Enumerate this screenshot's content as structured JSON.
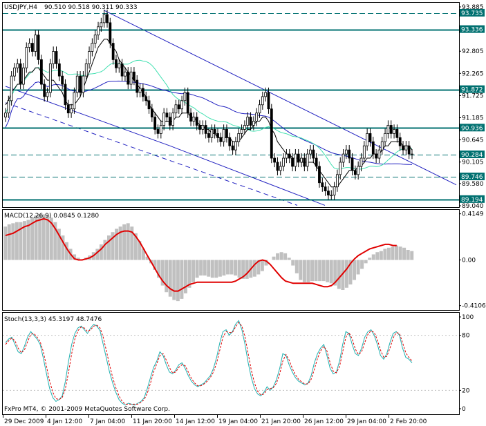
{
  "header": {
    "symbol": "USDJPY,H4",
    "ohlc": "90.510 90.518 90.311 90.333",
    "macd_label": "MACD(12,26,9) 0.0845 0.1280",
    "stoch_label": "Stoch(13,3,3) 45.3197 48.7476",
    "copyright": "FxPro MT4, © 2001-2009 MetaQuotes Software Corp."
  },
  "colors": {
    "candle": "#000000",
    "ma_fast": "#000000",
    "ma_mid": "#40e0b0",
    "ma_slow": "#2020c0",
    "channel": "#2020c0",
    "level_line": "#007070",
    "level_dash": "#007070",
    "macd_hist": "#c0c0c0",
    "macd_signal": "#e00000",
    "stoch_main": "#20b0b0",
    "stoch_signal": "#e00000",
    "grid": "#000000"
  },
  "chart_data": [
    {
      "type": "candlestick",
      "title": "USDJPY,H4",
      "ylim": [
        89.04,
        93.885
      ],
      "y_ticks": [
        "93.885",
        "93.335",
        "92.805",
        "92.265",
        "91.725",
        "91.185",
        "90.645",
        "90.105",
        "89.580",
        "89.040"
      ],
      "levels": [
        {
          "value": 93.735,
          "label": "93.735",
          "style": "dashed"
        },
        {
          "value": 93.336,
          "label": "93.336",
          "style": "solid"
        },
        {
          "value": 91.872,
          "label": "91.872",
          "style": "solid"
        },
        {
          "value": 90.936,
          "label": "90.936",
          "style": "solid"
        },
        {
          "value": 90.284,
          "label": "90.284",
          "style": "dashed"
        },
        {
          "value": 89.746,
          "label": "89.746",
          "style": "dashed"
        },
        {
          "value": 89.194,
          "label": "89.194",
          "style": "solid"
        }
      ],
      "x_ticks": [
        "29 Dec 2009",
        "4 Jan 12:00",
        "7 Jan 04:00",
        "11 Jan 20:00",
        "14 Jan 12:00",
        "19 Jan 04:00",
        "21 Jan 20:00",
        "26 Jan 12:00",
        "29 Jan 04:00",
        "2 Feb 20:00"
      ],
      "close": [
        91.3,
        91.6,
        92.2,
        92.4,
        92.5,
        92.0,
        92.4,
        92.9,
        93.0,
        92.8,
        93.2,
        92.6,
        92.0,
        91.7,
        91.8,
        92.5,
        92.8,
        92.5,
        92.2,
        92.0,
        91.5,
        91.3,
        91.4,
        91.8,
        92.2,
        91.8,
        92.2,
        92.5,
        92.8,
        93.0,
        93.2,
        93.4,
        93.5,
        93.7,
        93.5,
        93.0,
        92.6,
        92.4,
        92.5,
        92.2,
        92.3,
        92.0,
        92.3,
        92.1,
        91.8,
        91.9,
        91.7,
        91.6,
        91.4,
        91.2,
        90.9,
        90.8,
        91.0,
        91.3,
        91.2,
        91.0,
        91.3,
        91.5,
        91.4,
        91.6,
        91.8,
        91.3,
        91.1,
        91.2,
        91.0,
        90.9,
        91.0,
        90.8,
        90.7,
        90.9,
        90.8,
        90.7,
        90.6,
        90.9,
        90.7,
        90.5,
        90.4,
        90.6,
        90.8,
        90.9,
        91.0,
        91.2,
        91.0,
        91.1,
        91.3,
        91.5,
        91.7,
        91.8,
        91.4,
        90.2,
        90.1,
        89.9,
        90.0,
        90.2,
        90.3,
        90.2,
        90.0,
        90.3,
        90.1,
        90.2,
        90.0,
        90.3,
        90.4,
        90.2,
        90.0,
        89.6,
        89.5,
        89.4,
        89.3,
        89.3,
        89.5,
        89.8,
        90.1,
        90.3,
        90.4,
        90.2,
        89.9,
        89.8,
        90.0,
        90.2,
        90.5,
        90.8,
        90.6,
        90.3,
        90.2,
        90.4,
        90.6,
        90.8,
        91.0,
        90.8,
        90.9,
        90.7,
        90.5,
        90.4,
        90.5,
        90.3,
        90.3
      ],
      "ma_fast": [
        91.5,
        91.6,
        91.8,
        91.9,
        92.0,
        92.0,
        92.1,
        92.2,
        92.3,
        92.3,
        92.4,
        92.4,
        92.3,
        92.2,
        92.1,
        92.1,
        92.1,
        92.0,
        91.9,
        91.8,
        91.6,
        91.5,
        91.5,
        91.5,
        91.6,
        91.7,
        91.9,
        92.1,
        92.3,
        92.5,
        92.7,
        92.9,
        93.0,
        93.1,
        93.1,
        93.0,
        92.9,
        92.8,
        92.6,
        92.5,
        92.4,
        92.3,
        92.2,
        92.1,
        92.0,
        91.9,
        91.8,
        91.7,
        91.5,
        91.4,
        91.3,
        91.2,
        91.1,
        91.1,
        91.1,
        91.1,
        91.1,
        91.2,
        91.2,
        91.3,
        91.3,
        91.3,
        91.2,
        91.2,
        91.1,
        91.0,
        91.0,
        90.9,
        90.9,
        90.8,
        90.8,
        90.7,
        90.7,
        90.7,
        90.7,
        90.7,
        90.6,
        90.6,
        90.6,
        90.7,
        90.8,
        90.9,
        90.9,
        91.0,
        91.1,
        91.1,
        91.2,
        91.2,
        91.1,
        90.9,
        90.8,
        90.6,
        90.5,
        90.4,
        90.3,
        90.3,
        90.2,
        90.2,
        90.2,
        90.1,
        90.1,
        90.1,
        90.1,
        90.1,
        90.0,
        89.9,
        89.8,
        89.7,
        89.6,
        89.5,
        89.5,
        89.5,
        89.6,
        89.7,
        89.8,
        89.9,
        89.9,
        89.9,
        90.0,
        90.0,
        90.1,
        90.2,
        90.2,
        90.3,
        90.3,
        90.3,
        90.4,
        90.5,
        90.5,
        90.6,
        90.6,
        90.6,
        90.6,
        90.5,
        90.5,
        90.5,
        90.4
      ]
    },
    {
      "type": "bar",
      "title": "MACD(12,26,9)",
      "ylim": [
        -0.45,
        0.45
      ],
      "y_ticks": [
        "0.4149",
        "0.00",
        "-0.4106"
      ],
      "hist": [
        0.3,
        0.32,
        0.33,
        0.34,
        0.34,
        0.35,
        0.36,
        0.38,
        0.4,
        0.41,
        0.41,
        0.4,
        0.38,
        0.34,
        0.28,
        0.22,
        0.16,
        0.1,
        0.05,
        0.02,
        0.0,
        0.02,
        0.04,
        0.07,
        0.1,
        0.14,
        0.18,
        0.22,
        0.25,
        0.28,
        0.3,
        0.32,
        0.33,
        0.3,
        0.24,
        0.17,
        0.1,
        0.03,
        -0.03,
        -0.09,
        -0.16,
        -0.23,
        -0.29,
        -0.33,
        -0.36,
        -0.37,
        -0.35,
        -0.3,
        -0.25,
        -0.2,
        -0.16,
        -0.14,
        -0.14,
        -0.15,
        -0.16,
        -0.16,
        -0.15,
        -0.14,
        -0.13,
        -0.13,
        -0.14,
        -0.16,
        -0.17,
        -0.17,
        -0.16,
        -0.15,
        -0.13,
        -0.1,
        -0.05,
        0.0,
        0.03,
        0.06,
        0.07,
        0.06,
        0.02,
        -0.05,
        -0.12,
        -0.18,
        -0.2,
        -0.2,
        -0.19,
        -0.19,
        -0.19,
        -0.19,
        -0.2,
        -0.21,
        -0.23,
        -0.26,
        -0.27,
        -0.25,
        -0.22,
        -0.18,
        -0.13,
        -0.08,
        -0.03,
        0.02,
        0.05,
        0.07,
        0.08,
        0.1,
        0.11,
        0.12,
        0.13,
        0.12,
        0.11,
        0.09,
        0.08
      ],
      "signal": [
        0.22,
        0.23,
        0.24,
        0.26,
        0.28,
        0.3,
        0.31,
        0.33,
        0.35,
        0.36,
        0.37,
        0.36,
        0.33,
        0.28,
        0.22,
        0.16,
        0.1,
        0.05,
        0.01,
        0.0,
        0.0,
        0.01,
        0.02,
        0.04,
        0.07,
        0.1,
        0.14,
        0.17,
        0.2,
        0.23,
        0.25,
        0.26,
        0.26,
        0.25,
        0.21,
        0.16,
        0.1,
        0.04,
        -0.02,
        -0.08,
        -0.14,
        -0.19,
        -0.23,
        -0.26,
        -0.28,
        -0.28,
        -0.26,
        -0.24,
        -0.22,
        -0.21,
        -0.2,
        -0.2,
        -0.2,
        -0.2,
        -0.2,
        -0.2,
        -0.2,
        -0.2,
        -0.2,
        -0.2,
        -0.19,
        -0.17,
        -0.15,
        -0.12,
        -0.08,
        -0.04,
        -0.01,
        0.0,
        -0.01,
        -0.04,
        -0.08,
        -0.12,
        -0.16,
        -0.19,
        -0.2,
        -0.21,
        -0.21,
        -0.21,
        -0.21,
        -0.21,
        -0.21,
        -0.22,
        -0.23,
        -0.24,
        -0.24,
        -0.23,
        -0.2,
        -0.16,
        -0.12,
        -0.08,
        -0.03,
        0.01,
        0.04,
        0.06,
        0.08,
        0.1,
        0.11,
        0.12,
        0.13,
        0.14,
        0.14,
        0.13,
        0.13
      ]
    },
    {
      "type": "line",
      "title": "Stoch(13,3,3)",
      "ylim": [
        0,
        100
      ],
      "y_ticks": [
        "100",
        "80",
        "20",
        "0"
      ],
      "series": [
        {
          "values": [
            72,
            76,
            78,
            70,
            62,
            60,
            68,
            78,
            84,
            80,
            76,
            70,
            55,
            38,
            22,
            12,
            8,
            10,
            14,
            30,
            52,
            70,
            82,
            88,
            90,
            86,
            82,
            88,
            92,
            90,
            85,
            70,
            55,
            40,
            28,
            18,
            10,
            6,
            4,
            6,
            5,
            4,
            6,
            8,
            12,
            22,
            34,
            45,
            52,
            62,
            58,
            48,
            40,
            38,
            42,
            48,
            50,
            44,
            36,
            30,
            26,
            24,
            26,
            28,
            32,
            36,
            44,
            56,
            72,
            84,
            86,
            80,
            84,
            92,
            96,
            86,
            70,
            50,
            34,
            22,
            16,
            14,
            18,
            24,
            20,
            24,
            32,
            44,
            60,
            58,
            48,
            40,
            34,
            30,
            28,
            26,
            28,
            36,
            50,
            60,
            66,
            70,
            58,
            44,
            38,
            40,
            52,
            70,
            84,
            82,
            70,
            60,
            58,
            66,
            78,
            84,
            86,
            80,
            70,
            58,
            54,
            60,
            72,
            82,
            84,
            80,
            66,
            56,
            54,
            50
          ]
        },
        {
          "values": [
            70,
            74,
            77,
            74,
            66,
            61,
            64,
            73,
            81,
            82,
            78,
            73,
            62,
            46,
            30,
            18,
            11,
            10,
            12,
            22,
            40,
            60,
            76,
            85,
            89,
            88,
            84,
            86,
            90,
            91,
            88,
            78,
            63,
            48,
            34,
            23,
            14,
            8,
            5,
            5,
            5,
            5,
            5,
            7,
            10,
            17,
            28,
            40,
            49,
            58,
            60,
            53,
            45,
            39,
            40,
            45,
            48,
            47,
            40,
            33,
            28,
            25,
            25,
            27,
            30,
            34,
            40,
            50,
            64,
            78,
            84,
            83,
            83,
            89,
            94,
            90,
            78,
            60,
            42,
            28,
            19,
            15,
            16,
            21,
            22,
            23,
            28,
            38,
            52,
            59,
            53,
            44,
            37,
            32,
            29,
            27,
            27,
            32,
            43,
            55,
            63,
            68,
            63,
            50,
            41,
            39,
            46,
            62,
            78,
            83,
            76,
            65,
            59,
            62,
            72,
            81,
            85,
            83,
            75,
            64,
            56,
            57,
            66,
            77,
            83,
            82,
            72,
            61,
            56,
            52
          ]
        }
      ]
    }
  ]
}
